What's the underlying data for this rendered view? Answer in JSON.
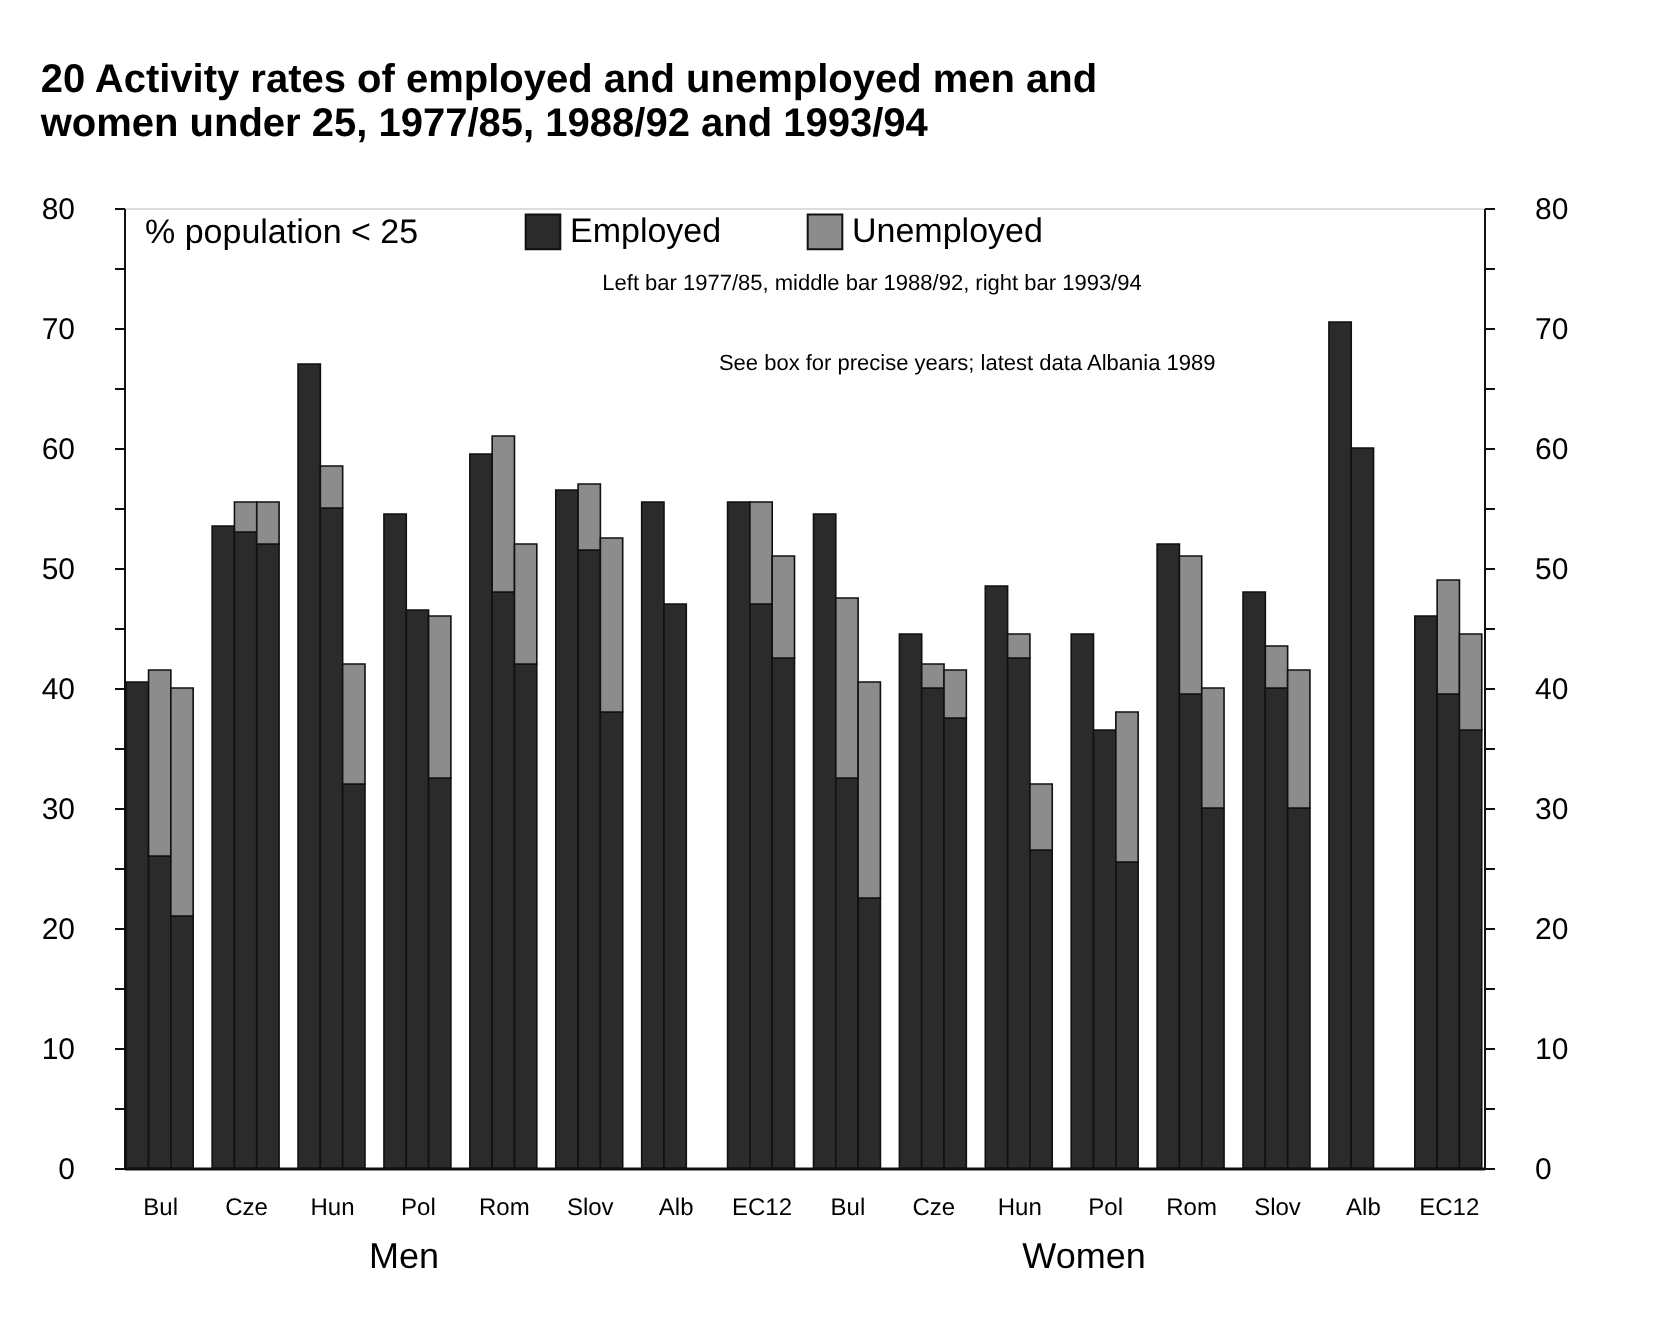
{
  "chart_data": {
    "type": "bar",
    "title": "20  Activity rates of employed and unemployed men and women under 25, 1977/85, 1988/92 and 1993/94",
    "ylabel": "% population < 25",
    "categories": [
      null,
      "Bul",
      null,
      null,
      "Cze",
      null,
      null,
      "Hun",
      null,
      null,
      "Pol",
      null,
      null,
      "Rom",
      null,
      null,
      "Slov",
      null,
      null,
      "Alb",
      null,
      null,
      "EC12",
      null,
      null,
      "Bul",
      null,
      null,
      "Cze",
      null,
      null,
      "Hun",
      null,
      null,
      "Pol",
      null,
      null,
      "Rom",
      null,
      null,
      "Slov",
      null,
      null,
      "Alb",
      null,
      null,
      "EC12",
      null
    ],
    "stacked": true,
    "series": [
      {
        "name": "Employed",
        "color": "#2b2b2b",
        "values": [
          40.5,
          26,
          21,
          53.5,
          53,
          52,
          67,
          55,
          32,
          54.5,
          46.5,
          32.5,
          59.5,
          48,
          42,
          56.5,
          51.5,
          38,
          55.5,
          47,
          null,
          55.5,
          47,
          42.5,
          54.5,
          32.5,
          22.5,
          44.5,
          40,
          37.5,
          48.5,
          42.5,
          26.5,
          44.5,
          36.5,
          25.5,
          52,
          39.5,
          30,
          48,
          40,
          30,
          70.5,
          60,
          null,
          46,
          39.5,
          36.5
        ]
      },
      {
        "name": "Unemployed",
        "color": "#8c8c8c",
        "values": [
          null,
          15.5,
          19,
          null,
          2.5,
          3.5,
          null,
          3.5,
          10,
          null,
          null,
          13.5,
          null,
          13,
          10,
          null,
          5.5,
          14.5,
          null,
          null,
          null,
          null,
          8.5,
          8.5,
          null,
          15,
          18,
          null,
          2,
          4,
          null,
          2,
          5.5,
          null,
          null,
          12.5,
          null,
          11.5,
          10,
          null,
          3.5,
          11.5,
          null,
          null,
          null,
          null,
          9.5,
          8
        ]
      }
    ],
    "ylim": [
      0,
      80
    ],
    "yticks": [
      0,
      {
        "value": 5,
        "label": null
      },
      10,
      {
        "value": 15,
        "label": null
      },
      20,
      {
        "value": 25,
        "label": null
      },
      30,
      {
        "value": 35,
        "label": null
      },
      40,
      {
        "value": 45,
        "label": null
      },
      50,
      {
        "value": 55,
        "label": null
      },
      60,
      {
        "value": 65,
        "label": null
      },
      70,
      {
        "value": 75,
        "label": null
      },
      80
    ],
    "y2lim": [
      0,
      80
    ],
    "y2ticks": [
      0,
      {
        "value": 5,
        "label": null
      },
      10,
      {
        "value": 15,
        "label": null
      },
      20,
      {
        "value": 25,
        "label": null
      },
      30,
      {
        "value": 35,
        "label": null
      },
      40,
      {
        "value": 45,
        "label": null
      },
      50,
      {
        "value": 55,
        "label": null
      },
      60,
      {
        "value": 65,
        "label": null
      },
      70,
      {
        "value": 75,
        "label": null
      },
      80
    ],
    "legend": "top",
    "grid": false,
    "annotations": [
      "Left bar 1977/85, middle bar 1988/92, right bar 1993/94",
      "See box for precise years; latest data Albania 1989",
      "Men",
      "Women"
    ]
  }
}
